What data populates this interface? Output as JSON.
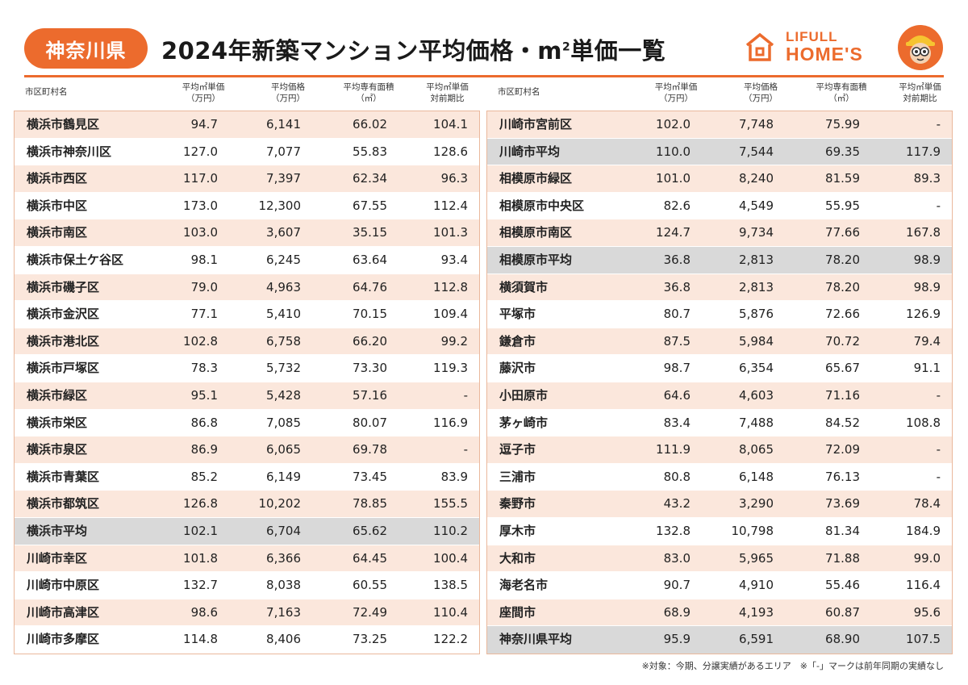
{
  "header": {
    "prefecture": "神奈川県",
    "title": "2024年新築マンション平均価格・m",
    "title_sup": "2",
    "title_suffix": "単価一覧",
    "logo_top": "LIFULL",
    "logo_bottom": "HOME'S"
  },
  "columns": {
    "name": "市区町村名",
    "unit_price_l1": "平均㎡単価",
    "unit_price_l2": "（万円）",
    "price_l1": "平均価格",
    "price_l2": "（万円）",
    "area_l1": "平均専有面積",
    "area_l2": "（㎡）",
    "yoy_l1": "平均㎡単価",
    "yoy_l2": "対前期比"
  },
  "left_rows": [
    {
      "name": "横浜市鶴見区",
      "unit": "94.7",
      "price": "6,141",
      "area": "66.02",
      "yoy": "104.1",
      "style": "odd"
    },
    {
      "name": "横浜市神奈川区",
      "unit": "127.0",
      "price": "7,077",
      "area": "55.83",
      "yoy": "128.6",
      "style": "even"
    },
    {
      "name": "横浜市西区",
      "unit": "117.0",
      "price": "7,397",
      "area": "62.34",
      "yoy": "96.3",
      "style": "odd"
    },
    {
      "name": "横浜市中区",
      "unit": "173.0",
      "price": "12,300",
      "area": "67.55",
      "yoy": "112.4",
      "style": "even"
    },
    {
      "name": "横浜市南区",
      "unit": "103.0",
      "price": "3,607",
      "area": "35.15",
      "yoy": "101.3",
      "style": "odd"
    },
    {
      "name": "横浜市保土ケ谷区",
      "unit": "98.1",
      "price": "6,245",
      "area": "63.64",
      "yoy": "93.4",
      "style": "even"
    },
    {
      "name": "横浜市磯子区",
      "unit": "79.0",
      "price": "4,963",
      "area": "64.76",
      "yoy": "112.8",
      "style": "odd"
    },
    {
      "name": "横浜市金沢区",
      "unit": "77.1",
      "price": "5,410",
      "area": "70.15",
      "yoy": "109.4",
      "style": "even"
    },
    {
      "name": "横浜市港北区",
      "unit": "102.8",
      "price": "6,758",
      "area": "66.20",
      "yoy": "99.2",
      "style": "odd"
    },
    {
      "name": "横浜市戸塚区",
      "unit": "78.3",
      "price": "5,732",
      "area": "73.30",
      "yoy": "119.3",
      "style": "even"
    },
    {
      "name": "横浜市緑区",
      "unit": "95.1",
      "price": "5,428",
      "area": "57.16",
      "yoy": "-",
      "style": "odd"
    },
    {
      "name": "横浜市栄区",
      "unit": "86.8",
      "price": "7,085",
      "area": "80.07",
      "yoy": "116.9",
      "style": "even"
    },
    {
      "name": "横浜市泉区",
      "unit": "86.9",
      "price": "6,065",
      "area": "69.78",
      "yoy": "-",
      "style": "odd"
    },
    {
      "name": "横浜市青葉区",
      "unit": "85.2",
      "price": "6,149",
      "area": "73.45",
      "yoy": "83.9",
      "style": "even"
    },
    {
      "name": "横浜市都筑区",
      "unit": "126.8",
      "price": "10,202",
      "area": "78.85",
      "yoy": "155.5",
      "style": "odd"
    },
    {
      "name": "横浜市平均",
      "unit": "102.1",
      "price": "6,704",
      "area": "65.62",
      "yoy": "110.2",
      "style": "avg"
    },
    {
      "name": "川崎市幸区",
      "unit": "101.8",
      "price": "6,366",
      "area": "64.45",
      "yoy": "100.4",
      "style": "odd"
    },
    {
      "name": "川崎市中原区",
      "unit": "132.7",
      "price": "8,038",
      "area": "60.55",
      "yoy": "138.5",
      "style": "even"
    },
    {
      "name": "川崎市高津区",
      "unit": "98.6",
      "price": "7,163",
      "area": "72.49",
      "yoy": "110.4",
      "style": "odd"
    },
    {
      "name": "川崎市多摩区",
      "unit": "114.8",
      "price": "8,406",
      "area": "73.25",
      "yoy": "122.2",
      "style": "even"
    }
  ],
  "right_rows": [
    {
      "name": "川崎市宮前区",
      "unit": "102.0",
      "price": "7,748",
      "area": "75.99",
      "yoy": "-",
      "style": "odd"
    },
    {
      "name": "川崎市平均",
      "unit": "110.0",
      "price": "7,544",
      "area": "69.35",
      "yoy": "117.9",
      "style": "avg"
    },
    {
      "name": "相模原市緑区",
      "unit": "101.0",
      "price": "8,240",
      "area": "81.59",
      "yoy": "89.3",
      "style": "odd"
    },
    {
      "name": "相模原市中央区",
      "unit": "82.6",
      "price": "4,549",
      "area": "55.95",
      "yoy": "-",
      "style": "even"
    },
    {
      "name": "相模原市南区",
      "unit": "124.7",
      "price": "9,734",
      "area": "77.66",
      "yoy": "167.8",
      "style": "odd"
    },
    {
      "name": "相模原市平均",
      "unit": "36.8",
      "price": "2,813",
      "area": "78.20",
      "yoy": "98.9",
      "style": "avg"
    },
    {
      "name": "横須賀市",
      "unit": "36.8",
      "price": "2,813",
      "area": "78.20",
      "yoy": "98.9",
      "style": "odd"
    },
    {
      "name": "平塚市",
      "unit": "80.7",
      "price": "5,876",
      "area": "72.66",
      "yoy": "126.9",
      "style": "even"
    },
    {
      "name": "鎌倉市",
      "unit": "87.5",
      "price": "5,984",
      "area": "70.72",
      "yoy": "79.4",
      "style": "odd"
    },
    {
      "name": "藤沢市",
      "unit": "98.7",
      "price": "6,354",
      "area": "65.67",
      "yoy": "91.1",
      "style": "even"
    },
    {
      "name": "小田原市",
      "unit": "64.6",
      "price": "4,603",
      "area": "71.16",
      "yoy": "-",
      "style": "odd"
    },
    {
      "name": "茅ヶ崎市",
      "unit": "83.4",
      "price": "7,488",
      "area": "84.52",
      "yoy": "108.8",
      "style": "even"
    },
    {
      "name": "逗子市",
      "unit": "111.9",
      "price": "8,065",
      "area": "72.09",
      "yoy": "-",
      "style": "odd"
    },
    {
      "name": "三浦市",
      "unit": "80.8",
      "price": "6,148",
      "area": "76.13",
      "yoy": "-",
      "style": "even"
    },
    {
      "name": "秦野市",
      "unit": "43.2",
      "price": "3,290",
      "area": "73.69",
      "yoy": "78.4",
      "style": "odd"
    },
    {
      "name": "厚木市",
      "unit": "132.8",
      "price": "10,798",
      "area": "81.34",
      "yoy": "184.9",
      "style": "even"
    },
    {
      "name": "大和市",
      "unit": "83.0",
      "price": "5,965",
      "area": "71.88",
      "yoy": "99.0",
      "style": "odd"
    },
    {
      "name": "海老名市",
      "unit": "90.7",
      "price": "4,910",
      "area": "55.46",
      "yoy": "116.4",
      "style": "even"
    },
    {
      "name": "座間市",
      "unit": "68.9",
      "price": "4,193",
      "area": "60.87",
      "yoy": "95.6",
      "style": "odd"
    },
    {
      "name": "神奈川県平均",
      "unit": "95.9",
      "price": "6,591",
      "area": "68.90",
      "yoy": "107.5",
      "style": "avg"
    }
  ],
  "footnote": "※対象：今期、分譲実績があるエリア　※「-」マークは前年同期の実績なし",
  "colors": {
    "accent": "#ec6b2d",
    "stripe": "#fbe7dc",
    "average": "#d9d9d9"
  }
}
